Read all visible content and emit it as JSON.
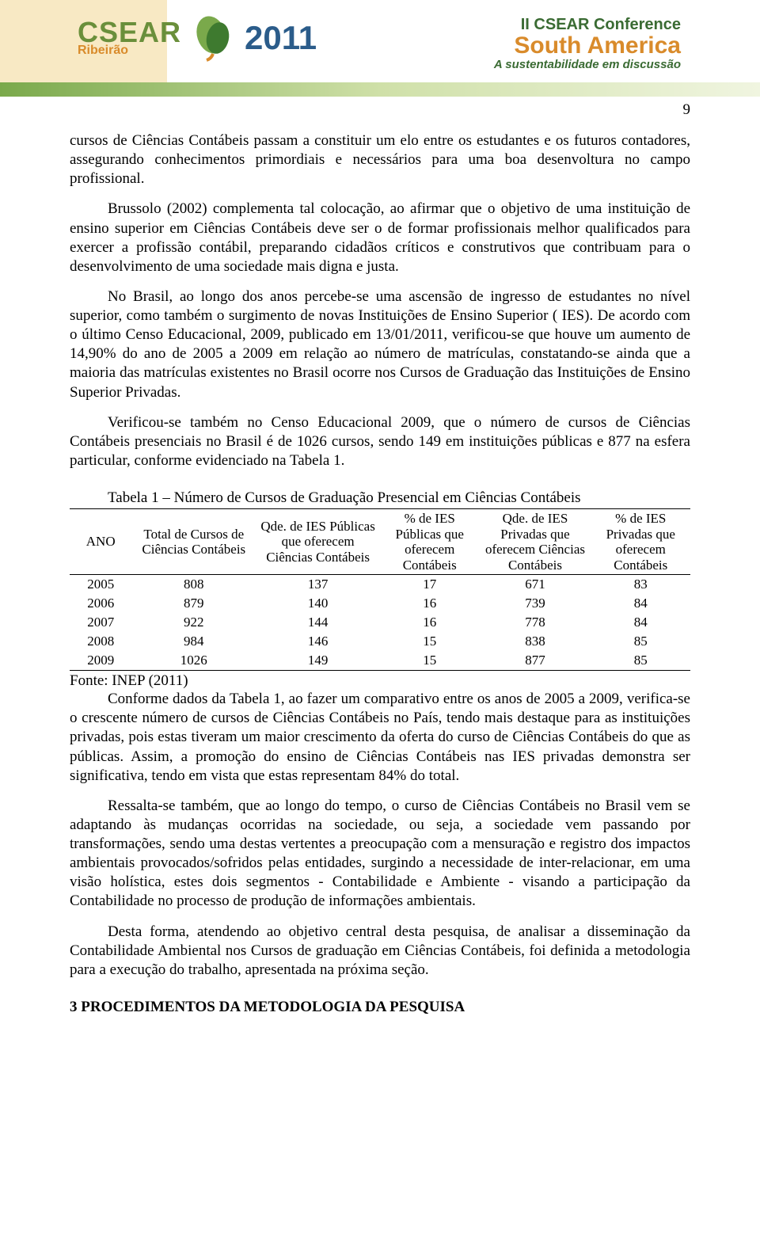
{
  "header": {
    "page_number": "9",
    "logo_left": {
      "brand": "CSEAR",
      "city": "Ribeirão",
      "year": "2011",
      "leaf_icon": "leaf-icon",
      "colors": {
        "green": "#6a8f3b",
        "orange": "#d98b2b",
        "blue": "#2b5c8a"
      }
    },
    "logo_right": {
      "line1": "II CSEAR Conference",
      "line2": "South America",
      "line3": "A sustentabilidade em discussão"
    }
  },
  "paragraphs": {
    "p1": "cursos de Ciências Contábeis passam a constituir um elo entre os estudantes e os futuros contadores, assegurando conhecimentos primordiais e necessários para uma boa desenvoltura no campo profissional.",
    "p2": "Brussolo (2002) complementa tal colocação, ao afirmar que o objetivo de uma instituição de ensino superior em Ciências Contábeis deve ser o de formar profissionais melhor qualificados para exercer a profissão contábil, preparando cidadãos críticos e construtivos que contribuam para o desenvolvimento de uma sociedade mais digna e justa.",
    "p3": "No Brasil, ao longo dos anos percebe-se uma ascensão de ingresso de estudantes no nível superior, como também o surgimento de novas Instituições de Ensino Superior ( IES). De acordo com o último Censo Educacional, 2009, publicado em 13/01/2011, verificou-se que houve um aumento de 14,90% do ano de 2005 a 2009 em relação ao número de matrículas, constatando-se ainda que a maioria das matrículas existentes no Brasil ocorre nos Cursos de Graduação das Instituições de Ensino Superior Privadas.",
    "p4": "Verificou-se também no Censo Educacional 2009, que o número de cursos de Ciências Contábeis presenciais no Brasil é de 1026 cursos, sendo 149 em instituições públicas e 877 na esfera particular, conforme evidenciado na Tabela 1.",
    "p5": "Conforme dados da Tabela 1, ao fazer um comparativo entre os anos de 2005 a 2009, verifica-se o crescente número de cursos de Ciências Contábeis no País, tendo mais destaque para as instituições privadas, pois estas tiveram um maior crescimento da oferta do curso de Ciências Contábeis do que as públicas. Assim, a promoção do ensino de Ciências Contábeis nas IES privadas demonstra ser significativa, tendo em vista que estas representam 84% do total.",
    "p6": "Ressalta-se também, que ao longo do tempo, o curso de Ciências Contábeis no Brasil vem se adaptando às mudanças ocorridas na sociedade, ou seja, a sociedade vem passando por transformações, sendo uma destas vertentes a preocupação com a mensuração e registro dos impactos ambientais provocados/sofridos pelas entidades, surgindo a necessidade de inter-relacionar, em uma visão holística, estes dois segmentos - Contabilidade e Ambiente - visando a participação da Contabilidade no processo de produção de informações ambientais.",
    "p7": "Desta forma, atendendo ao objetivo central desta pesquisa, de analisar a disseminação da Contabilidade Ambiental nos Cursos de graduação em Ciências Contábeis, foi definida a metodologia para a execução do trabalho, apresentada na próxima seção."
  },
  "table": {
    "caption": "Tabela 1 – Número de Cursos de Graduação Presencial em Ciências Contábeis",
    "columns": [
      "ANO",
      "Total de Cursos de Ciências Contábeis",
      "Qde. de IES Públicas que oferecem Ciências Contábeis",
      "% de IES Públicas que oferecem Contábeis",
      "Qde. de IES Privadas que oferecem Ciências Contábeis",
      "% de IES Privadas que oferecem Contábeis"
    ],
    "col_widths_pct": [
      10,
      20,
      20,
      16,
      18,
      16
    ],
    "rows": [
      [
        "2005",
        "808",
        "137",
        "17",
        "671",
        "83"
      ],
      [
        "2006",
        "879",
        "140",
        "16",
        "739",
        "84"
      ],
      [
        "2007",
        "922",
        "144",
        "16",
        "778",
        "84"
      ],
      [
        "2008",
        "984",
        "146",
        "15",
        "838",
        "85"
      ],
      [
        "2009",
        "1026",
        "149",
        "15",
        "877",
        "85"
      ]
    ],
    "source": "Fonte: INEP (2011)",
    "border_color": "#000000",
    "font_size_pt": 12
  },
  "section_heading": "3 PROCEDIMENTOS DA METODOLOGIA DA PESQUISA"
}
